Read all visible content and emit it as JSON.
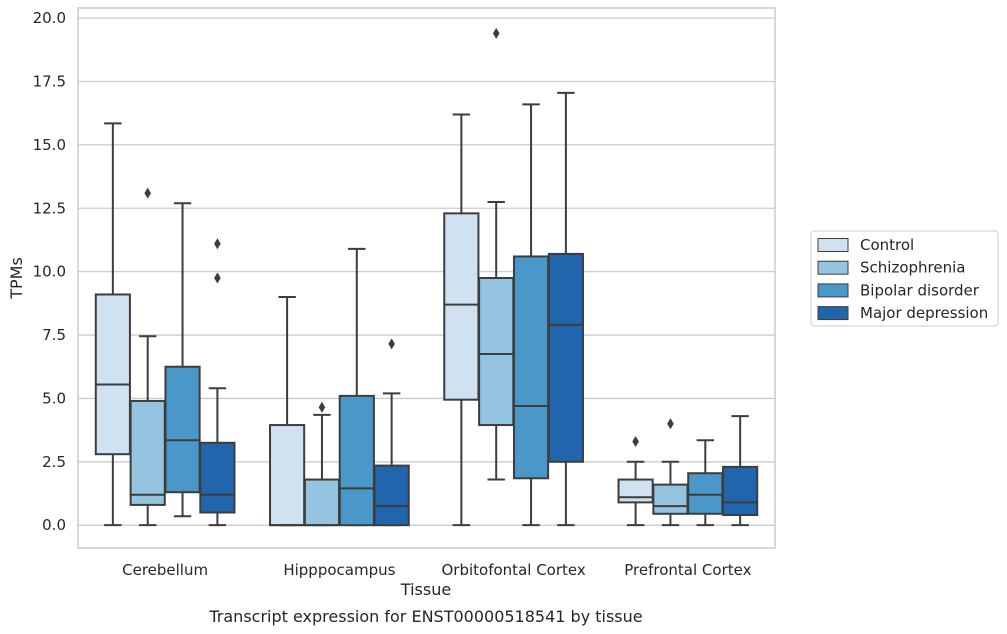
{
  "chart_data": {
    "type": "box",
    "caption": "Transcript expression for ENST00000518541 by tissue",
    "xlabel": "Tissue",
    "ylabel": "TPMs",
    "ylim": [
      -0.9,
      20.4
    ],
    "yticks": [
      "0.0",
      "2.5",
      "5.0",
      "7.5",
      "10.0",
      "12.5",
      "15.0",
      "17.5",
      "20.0"
    ],
    "grid": true,
    "legend_position": "right",
    "categories": [
      "Cerebellum",
      "Hipppocampus",
      "Orbitofontal Cortex",
      "Prefrontal Cortex"
    ],
    "series": [
      {
        "name": "Control",
        "color": "#d0e1f2",
        "boxes": [
          {
            "whislo": 0.0,
            "q1": 2.8,
            "med": 5.55,
            "q3": 9.1,
            "whishi": 15.85,
            "fliers": []
          },
          {
            "whislo": 0.0,
            "q1": 0.0,
            "med": 0.0,
            "q3": 3.95,
            "whishi": 9.0,
            "fliers": []
          },
          {
            "whislo": 0.0,
            "q1": 4.95,
            "med": 8.7,
            "q3": 12.3,
            "whishi": 16.2,
            "fliers": []
          },
          {
            "whislo": 0.0,
            "q1": 0.9,
            "med": 1.1,
            "q3": 1.8,
            "whishi": 2.5,
            "fliers": [
              3.3
            ]
          }
        ]
      },
      {
        "name": "Schizophrenia",
        "color": "#94c4df",
        "boxes": [
          {
            "whislo": 0.0,
            "q1": 0.8,
            "med": 1.2,
            "q3": 4.9,
            "whishi": 7.45,
            "fliers": [
              13.1
            ]
          },
          {
            "whislo": 0.0,
            "q1": 0.0,
            "med": 0.0,
            "q3": 1.8,
            "whishi": 4.35,
            "fliers": [
              4.65
            ]
          },
          {
            "whislo": 1.8,
            "q1": 3.95,
            "med": 6.75,
            "q3": 9.75,
            "whishi": 12.75,
            "fliers": [
              19.4
            ]
          },
          {
            "whislo": 0.0,
            "q1": 0.45,
            "med": 0.75,
            "q3": 1.6,
            "whishi": 2.5,
            "fliers": [
              4.0
            ]
          }
        ]
      },
      {
        "name": "Bipolar disorder",
        "color": "#4a98c9",
        "boxes": [
          {
            "whislo": 0.35,
            "q1": 1.3,
            "med": 3.35,
            "q3": 6.25,
            "whishi": 12.7,
            "fliers": []
          },
          {
            "whislo": 0.0,
            "q1": 0.0,
            "med": 1.45,
            "q3": 5.1,
            "whishi": 10.9,
            "fliers": []
          },
          {
            "whislo": 0.0,
            "q1": 1.85,
            "med": 4.7,
            "q3": 10.6,
            "whishi": 16.6,
            "fliers": []
          },
          {
            "whislo": 0.0,
            "q1": 0.45,
            "med": 1.2,
            "q3": 2.05,
            "whishi": 3.35,
            "fliers": []
          }
        ]
      },
      {
        "name": "Major depression",
        "color": "#2166ac",
        "boxes": [
          {
            "whislo": 0.0,
            "q1": 0.5,
            "med": 1.2,
            "q3": 3.25,
            "whishi": 5.4,
            "fliers": [
              9.75,
              11.1
            ]
          },
          {
            "whislo": 0.0,
            "q1": 0.0,
            "med": 0.75,
            "q3": 2.35,
            "whishi": 5.2,
            "fliers": [
              7.15
            ]
          },
          {
            "whislo": 0.0,
            "q1": 2.5,
            "med": 7.9,
            "q3": 10.7,
            "whishi": 17.05,
            "fliers": []
          },
          {
            "whislo": 0.0,
            "q1": 0.4,
            "med": 0.9,
            "q3": 2.3,
            "whishi": 4.3,
            "fliers": []
          }
        ]
      }
    ]
  }
}
